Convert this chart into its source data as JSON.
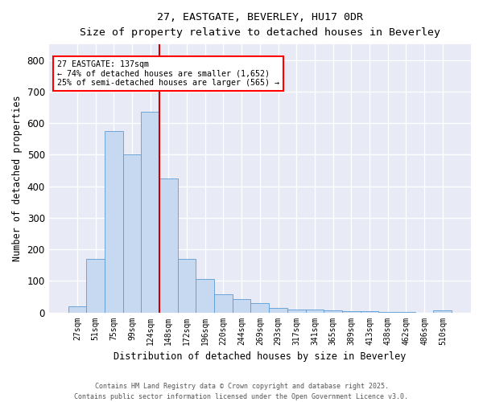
{
  "title_line1": "27, EASTGATE, BEVERLEY, HU17 0DR",
  "title_line2": "Size of property relative to detached houses in Beverley",
  "xlabel": "Distribution of detached houses by size in Beverley",
  "ylabel": "Number of detached properties",
  "bar_labels": [
    "27sqm",
    "51sqm",
    "75sqm",
    "99sqm",
    "124sqm",
    "148sqm",
    "172sqm",
    "196sqm",
    "220sqm",
    "244sqm",
    "269sqm",
    "293sqm",
    "317sqm",
    "341sqm",
    "365sqm",
    "389sqm",
    "413sqm",
    "438sqm",
    "462sqm",
    "486sqm",
    "510sqm"
  ],
  "bar_values": [
    20,
    170,
    575,
    500,
    635,
    425,
    170,
    105,
    57,
    42,
    30,
    15,
    10,
    8,
    6,
    4,
    3,
    1,
    1,
    0,
    7
  ],
  "bar_color": "#c6d9f1",
  "bar_edge_color": "#5b9bd5",
  "vline_color": "#cc0000",
  "annotation_title": "27 EASTGATE: 137sqm",
  "annotation_line2": "← 74% of detached houses are smaller (1,652)",
  "annotation_line3": "25% of semi-detached houses are larger (565) →",
  "annotation_box_color": "red",
  "annotation_text_color": "black",
  "annotation_bg": "white",
  "ylim": [
    0,
    850
  ],
  "yticks": [
    0,
    100,
    200,
    300,
    400,
    500,
    600,
    700,
    800
  ],
  "footnote_line1": "Contains HM Land Registry data © Crown copyright and database right 2025.",
  "footnote_line2": "Contains public sector information licensed under the Open Government Licence v3.0.",
  "bg_color": "#e8eaf6",
  "grid_color": "white",
  "fig_width": 6.0,
  "fig_height": 5.0
}
